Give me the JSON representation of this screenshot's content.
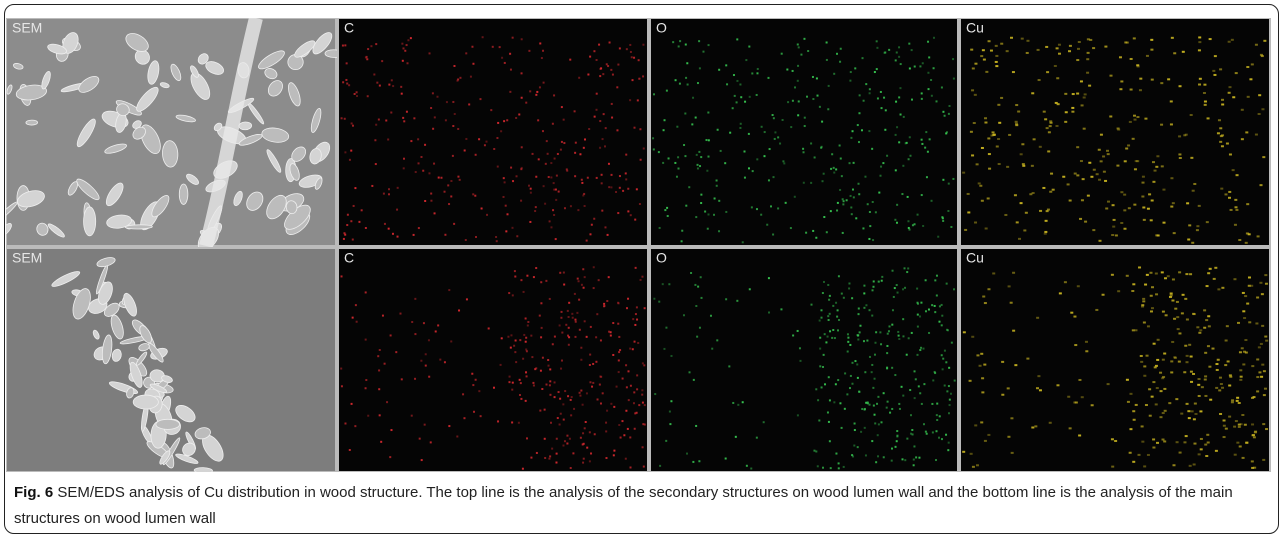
{
  "panels": {
    "rows": [
      [
        "SEM",
        "C",
        "O",
        "Cu"
      ],
      [
        "SEM",
        "C",
        "O",
        "Cu"
      ]
    ]
  },
  "caption": {
    "label": "Fig. 6",
    "text": "SEM/EDS analysis of Cu distribution in wood structure. The top line is the analysis of the secondary structures on wood lumen wall and the bottom line is the analysis of the main structures on wood lumen wall"
  }
}
